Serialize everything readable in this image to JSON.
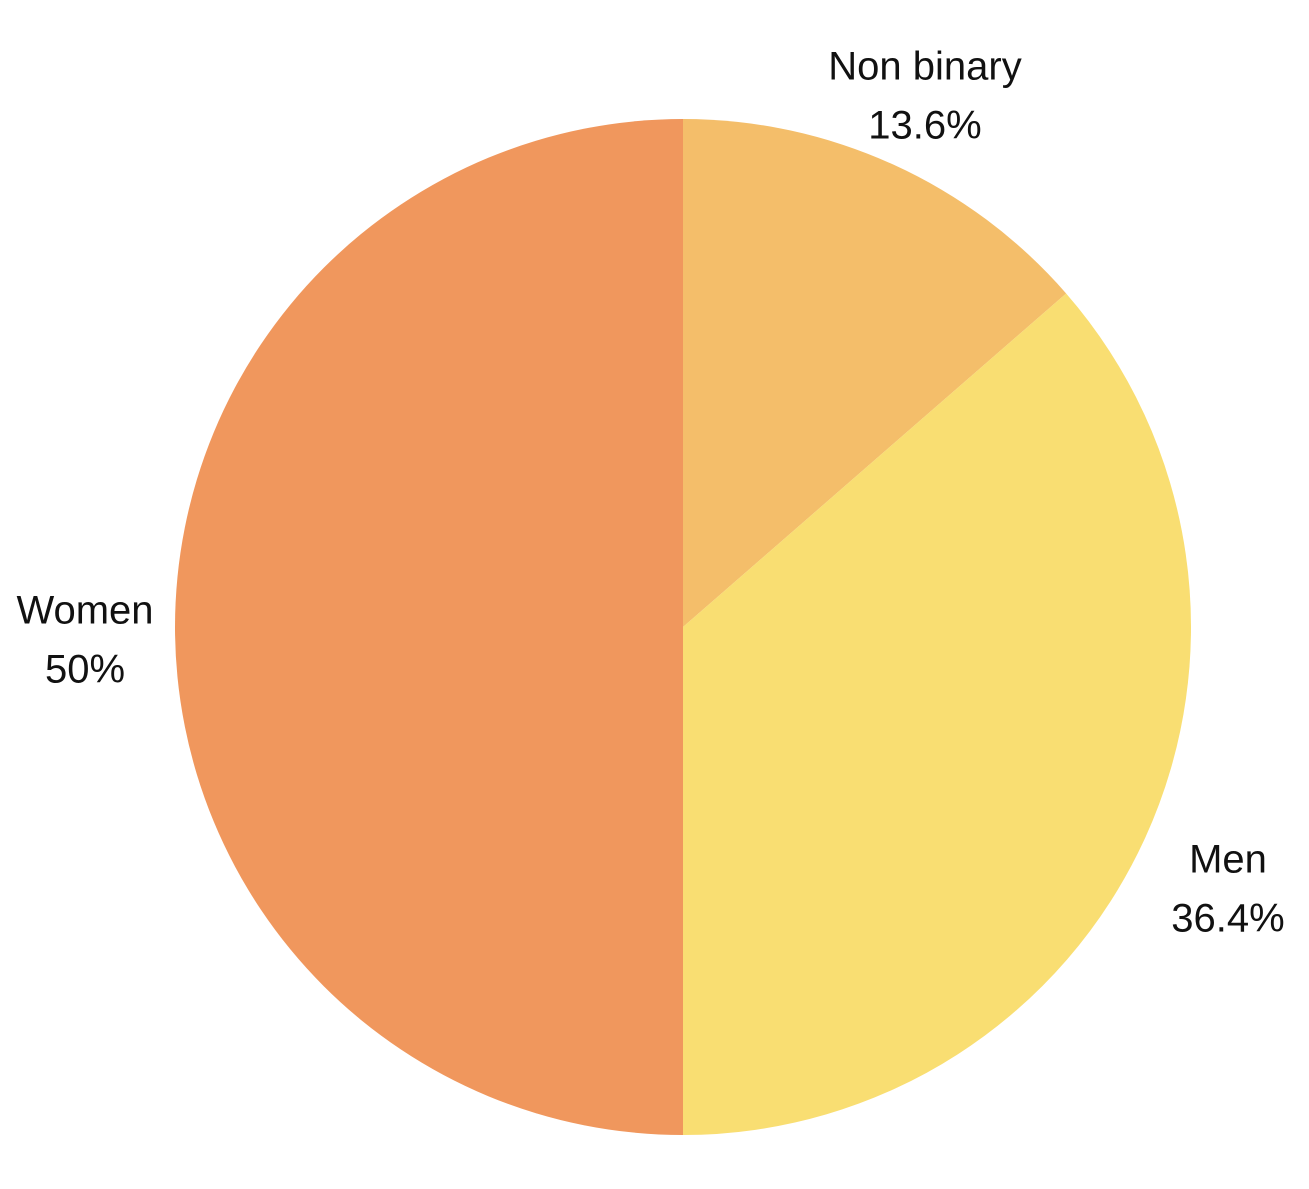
{
  "chart_data": {
    "type": "pie",
    "title": "",
    "slices": [
      {
        "label": "Non binary",
        "percent_label": "13.6%",
        "value": 13.6,
        "color": "#F4BE6A"
      },
      {
        "label": "Men",
        "percent_label": "36.4%",
        "value": 36.4,
        "color": "#F9DE72"
      },
      {
        "label": "Women",
        "percent_label": "50%",
        "value": 50,
        "color": "#F0975D"
      }
    ],
    "start_angle": "12 o'clock",
    "direction": "clockwise",
    "legend": "none"
  }
}
